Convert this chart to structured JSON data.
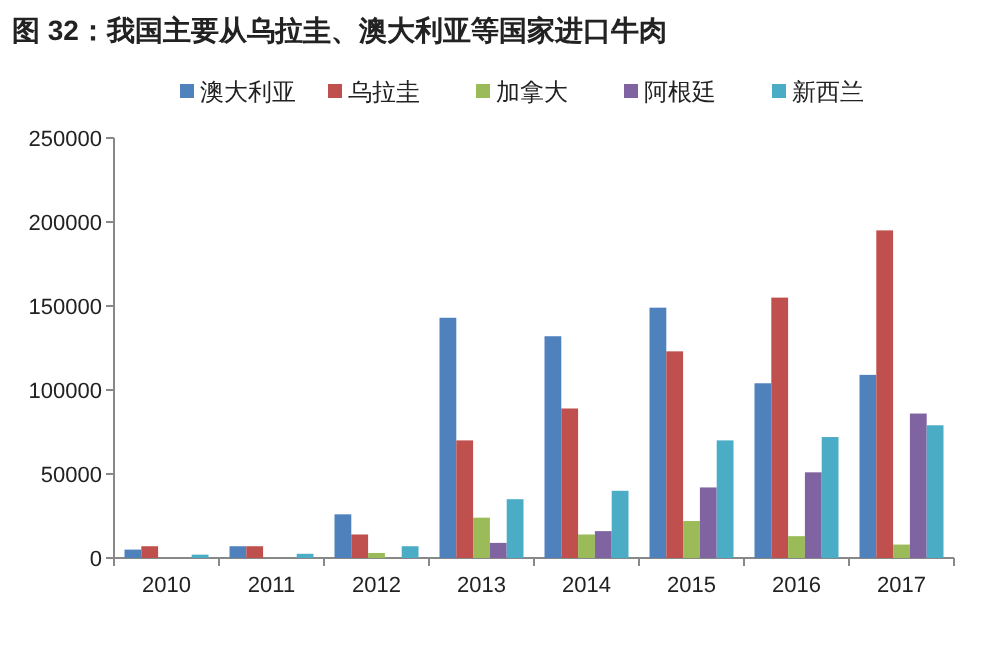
{
  "chart_data": {
    "type": "bar",
    "title": "图 32：我国主要从乌拉圭、澳大利亚等国家进口牛肉",
    "categories": [
      "2010",
      "2011",
      "2012",
      "2013",
      "2014",
      "2015",
      "2016",
      "2017"
    ],
    "series": [
      {
        "name": "澳大利亚",
        "color": "#4f81bd",
        "values": [
          5000,
          7000,
          26000,
          143000,
          132000,
          149000,
          104000,
          109000
        ]
      },
      {
        "name": "乌拉圭",
        "color": "#c0504d",
        "values": [
          7000,
          7000,
          14000,
          70000,
          89000,
          123000,
          155000,
          195000
        ]
      },
      {
        "name": "加拿大",
        "color": "#9bbb59",
        "values": [
          null,
          null,
          3000,
          24000,
          14000,
          22000,
          13000,
          8000
        ]
      },
      {
        "name": "阿根廷",
        "color": "#8064a2",
        "values": [
          null,
          null,
          null,
          9000,
          16000,
          42000,
          51000,
          86000
        ]
      },
      {
        "name": "新西兰",
        "color": "#4bacc6",
        "values": [
          2000,
          2500,
          7000,
          35000,
          40000,
          70000,
          72000,
          79000
        ]
      }
    ],
    "ylim": [
      0,
      250000
    ],
    "yticks": [
      0,
      50000,
      100000,
      150000,
      200000,
      250000
    ],
    "grid": false,
    "legend": "top"
  }
}
